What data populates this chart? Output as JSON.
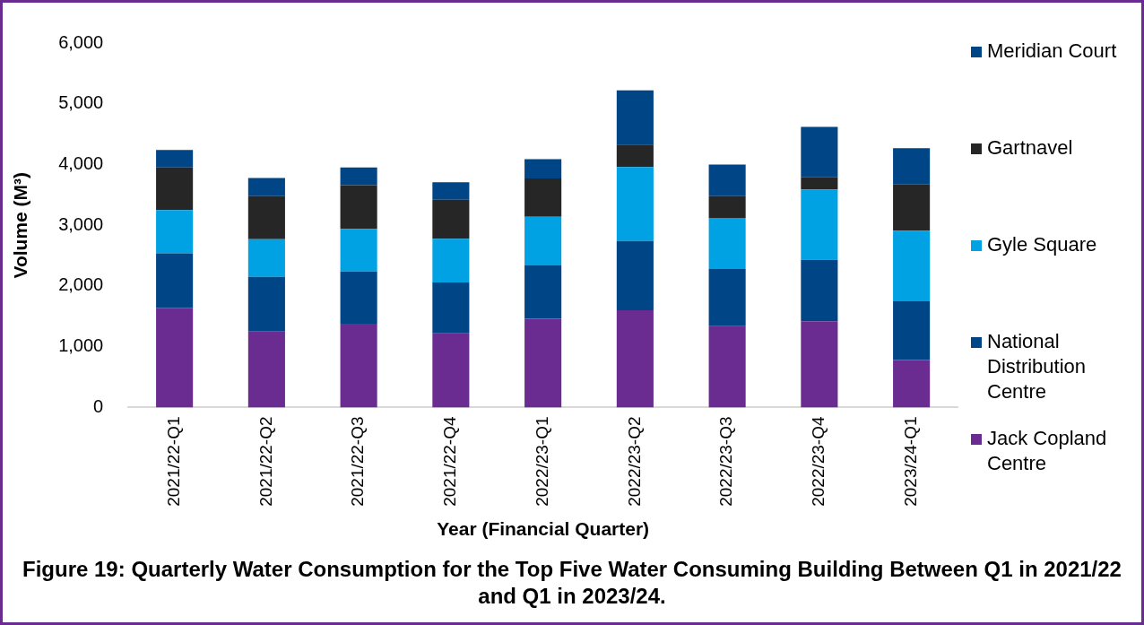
{
  "chart_data": {
    "type": "bar",
    "stacked": true,
    "title": "Figure 19: Quarterly Water Consumption for the Top Five Water Consuming Building Between Q1 in 2021/22 and Q1 in 2023/24.",
    "xlabel": "Year (Financial Quarter)",
    "ylabel": "Volume (M³)",
    "categories": [
      "2021/22-Q1",
      "2021/22-Q2",
      "2021/22-Q3",
      "2021/22-Q4",
      "2022/23-Q1",
      "2022/23-Q2",
      "2022/23-Q3",
      "2022/23-Q4",
      "2023/24-Q1"
    ],
    "ylim": [
      0,
      6000
    ],
    "yticks": [
      {
        "value": 0,
        "label": "0"
      },
      {
        "value": 1000,
        "label": "1,000"
      },
      {
        "value": 2000,
        "label": "2,000"
      },
      {
        "value": 3000,
        "label": "3,000"
      },
      {
        "value": 4000,
        "label": "4,000"
      },
      {
        "value": 5000,
        "label": "5,000"
      },
      {
        "value": 6000,
        "label": "6,000"
      }
    ],
    "grid": false,
    "legend": "right",
    "series": [
      {
        "name": "Jack Copland Centre",
        "color": "#6b2c91",
        "values": [
          1640,
          1250,
          1380,
          1220,
          1460,
          1600,
          1340,
          1420,
          780
        ]
      },
      {
        "name": "National Distribution Centre",
        "color": "#004586",
        "values": [
          900,
          900,
          860,
          840,
          880,
          1140,
          940,
          1010,
          970
        ]
      },
      {
        "name": "Gyle Square",
        "color": "#00a2e3",
        "values": [
          710,
          620,
          700,
          720,
          800,
          1220,
          840,
          1160,
          1160
        ]
      },
      {
        "name": "Gartnavel",
        "color": "#262626",
        "values": [
          700,
          710,
          720,
          640,
          630,
          370,
          360,
          200,
          760
        ]
      },
      {
        "name": "Meridian Court",
        "color": "#004586",
        "values": [
          290,
          300,
          290,
          290,
          320,
          890,
          520,
          830,
          600
        ]
      }
    ]
  }
}
